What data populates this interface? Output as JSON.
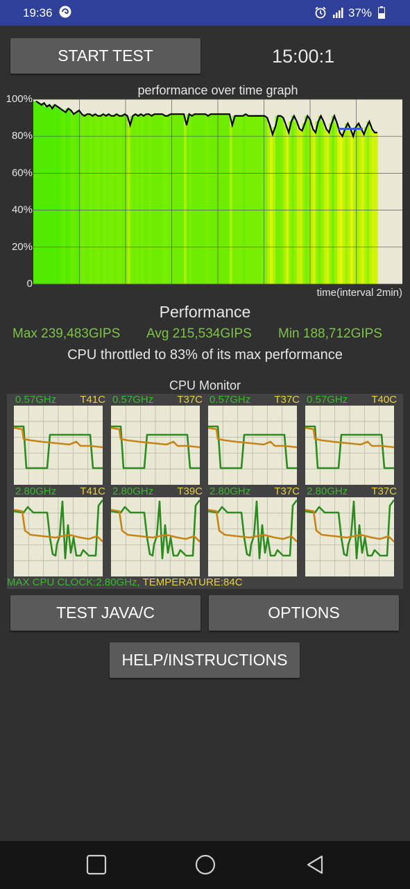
{
  "status_bar": {
    "time": "19:36",
    "battery": "37%",
    "icons": [
      "app-notification-icon",
      "alarm-icon",
      "signal-icon",
      "battery-icon"
    ]
  },
  "controls": {
    "start_label": "START TEST",
    "timer": "15:00:1",
    "test_java_label": "TEST JAVA/C",
    "options_label": "OPTIONS",
    "help_label": "HELP/INSTRUCTIONS"
  },
  "chart_data": {
    "type": "area",
    "title": "performance over time graph",
    "xlabel": "time(interval 2min)",
    "ylabel": "",
    "y_ticks": [
      "100%",
      "80%",
      "60%",
      "40%",
      "20%",
      "0"
    ],
    "ylim": [
      0,
      100
    ],
    "grid": true,
    "series": [
      {
        "values": [
          99,
          98,
          97,
          98,
          96,
          97,
          95,
          97,
          96,
          95,
          94,
          93,
          95,
          94,
          92,
          93,
          94,
          92,
          91,
          92,
          92,
          91,
          92,
          91,
          91,
          92,
          91,
          92,
          91,
          91,
          92,
          91,
          91,
          92,
          91,
          86,
          91,
          92,
          91,
          92,
          91,
          92,
          92,
          91,
          92,
          92,
          92,
          92,
          91,
          91,
          92,
          92,
          92,
          92,
          92,
          92,
          86,
          92,
          91,
          92,
          92,
          92,
          92,
          92,
          91,
          92,
          92,
          92,
          92,
          92,
          92,
          92,
          92,
          86,
          91,
          91,
          91,
          91,
          92,
          91,
          91,
          91,
          91,
          91,
          91,
          91,
          90,
          86,
          81,
          85,
          91,
          91,
          90,
          86,
          82,
          88,
          91,
          88,
          84,
          83,
          87,
          91,
          89,
          84,
          82,
          88,
          91,
          88,
          84,
          82,
          87,
          91,
          87,
          82,
          80,
          84,
          87,
          84,
          80,
          85,
          87,
          84,
          81,
          85,
          88,
          84,
          82,
          82
        ]
      }
    ],
    "reference_band": {
      "value": 84,
      "color": "#3b5bd6"
    }
  },
  "performance": {
    "title": "Performance",
    "max": "Max 239,483GIPS",
    "avg": "Avg 215,534GIPS",
    "min": "Min 188,712GIPS",
    "throttle_text": "CPU throttled to 83% of its max performance"
  },
  "cpu_monitor": {
    "title": "CPU Monitor",
    "cores": [
      {
        "freq": "0.57GHz",
        "temp": "T41C"
      },
      {
        "freq": "0.57GHz",
        "temp": "T37C"
      },
      {
        "freq": "0.57GHz",
        "temp": "T37C"
      },
      {
        "freq": "0.57GHz",
        "temp": "T40C"
      },
      {
        "freq": "2.80GHz",
        "temp": "T41C"
      },
      {
        "freq": "2.80GHz",
        "temp": "T39C"
      },
      {
        "freq": "2.80GHz",
        "temp": "T37C"
      },
      {
        "freq": "2.80GHz",
        "temp": "T37C"
      }
    ],
    "footer_clock": "MAX CPU CLOCK:2.80GHz,",
    "footer_temp": " TEMPERATURE:84C"
  },
  "colors": {
    "freq_line": "#2e8b22",
    "temp_line": "#c88416",
    "graph_bg": "#e9e8d4",
    "status_bar": "#2f4098"
  }
}
